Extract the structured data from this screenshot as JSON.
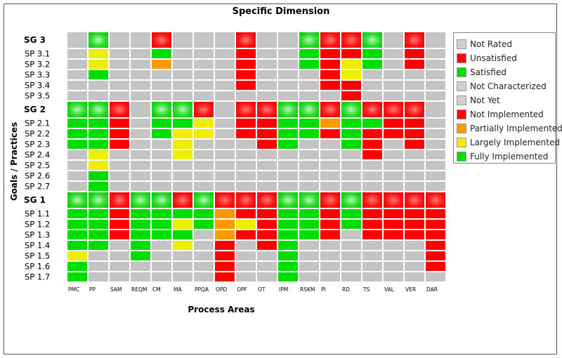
{
  "title": "Specific Dimension",
  "xlabel": "Process Areas",
  "ylabel": "Goals / Practices",
  "legend": [
    {
      "label": "Not Rated",
      "status": "nr"
    },
    {
      "label": "Unsatisfied",
      "status": "u"
    },
    {
      "label": "Satisfied",
      "status": "s"
    },
    {
      "label": "Not Characterized",
      "status": "nc"
    },
    {
      "label": "Not Yet",
      "status": "ny"
    },
    {
      "label": "Not Implemented",
      "status": "ni"
    },
    {
      "label": "Partially Implemented",
      "status": "pi"
    },
    {
      "label": "Largely Implemented",
      "status": "li"
    },
    {
      "label": "Fully Implemented",
      "status": "fi"
    }
  ],
  "colors": {
    "nr": "#d4d0c8",
    "u": "#ff0000",
    "s": "#00dd00",
    "nc": "#d4d0c8",
    "ny": "#d4d0c8",
    "ni": "#ff0000",
    "pi": "#ff9900",
    "li": "#eeee00",
    "fi": "#00dd00",
    "empty": "#c4c4c4",
    "grid": "#ffffff"
  },
  "chart_data": {
    "type": "heatmap",
    "title": "Specific Dimension",
    "xlabel": "Process Areas",
    "ylabel": "Goals / Practices",
    "columns": [
      "PMC",
      "PP",
      "SAM",
      "REQM",
      "CM",
      "MA",
      "PPQA",
      "OPD",
      "OPF",
      "OT",
      "IPM",
      "RSKM",
      "PI",
      "RD",
      "TS",
      "VAL",
      "VER",
      "DAR"
    ],
    "rows": [
      {
        "label": "SG 3",
        "goal": true,
        "cells": [
          "",
          "s",
          "",
          "",
          "u",
          "",
          "",
          "",
          "u",
          "",
          "",
          "s",
          "u",
          "u",
          "s",
          "",
          "u",
          ""
        ]
      },
      {
        "label": "SP 3.1",
        "goal": false,
        "cells": [
          "",
          "li",
          "",
          "",
          "fi",
          "",
          "",
          "",
          "ni",
          "",
          "",
          "fi",
          "ni",
          "ni",
          "fi",
          "",
          "ni",
          ""
        ]
      },
      {
        "label": "SP 3.2",
        "goal": false,
        "cells": [
          "",
          "li",
          "",
          "",
          "pi",
          "",
          "",
          "",
          "ni",
          "",
          "",
          "fi",
          "ni",
          "li",
          "fi",
          "",
          "ni",
          ""
        ]
      },
      {
        "label": "SP 3.3",
        "goal": false,
        "cells": [
          "",
          "fi",
          "",
          "",
          "",
          "",
          "",
          "",
          "ni",
          "",
          "",
          "",
          "ni",
          "li",
          "",
          "",
          "",
          ""
        ]
      },
      {
        "label": "SP 3.4",
        "goal": false,
        "cells": [
          "",
          "",
          "",
          "",
          "",
          "",
          "",
          "",
          "ni",
          "",
          "",
          "",
          "ni",
          "ni",
          "",
          "",
          "",
          ""
        ]
      },
      {
        "label": "SP 3.5",
        "goal": false,
        "cells": [
          "",
          "",
          "",
          "",
          "",
          "",
          "",
          "",
          "",
          "",
          "",
          "",
          "",
          "ni",
          "",
          "",
          "",
          ""
        ]
      },
      {
        "label": "SG 2",
        "goal": true,
        "cells": [
          "s",
          "s",
          "u",
          "",
          "s",
          "s",
          "u",
          "",
          "u",
          "u",
          "s",
          "s",
          "u",
          "s",
          "u",
          "u",
          "u",
          ""
        ]
      },
      {
        "label": "SP 2.1",
        "goal": false,
        "cells": [
          "fi",
          "fi",
          "ni",
          "",
          "fi",
          "fi",
          "li",
          "",
          "ni",
          "ni",
          "fi",
          "fi",
          "pi",
          "fi",
          "fi",
          "ni",
          "ni",
          ""
        ]
      },
      {
        "label": "SP 2.2",
        "goal": false,
        "cells": [
          "fi",
          "fi",
          "ni",
          "",
          "fi",
          "li",
          "li",
          "",
          "ni",
          "ni",
          "fi",
          "fi",
          "ni",
          "fi",
          "ni",
          "ni",
          "ni",
          ""
        ]
      },
      {
        "label": "SP 2.3",
        "goal": false,
        "cells": [
          "fi",
          "fi",
          "ni",
          "",
          "",
          "li",
          "",
          "",
          "",
          "ni",
          "fi",
          "",
          "",
          "fi",
          "ni",
          "",
          "ni",
          ""
        ]
      },
      {
        "label": "SP 2.4",
        "goal": false,
        "cells": [
          "",
          "li",
          "",
          "",
          "",
          "li",
          "",
          "",
          "",
          "",
          "",
          "",
          "",
          "",
          "ni",
          "",
          "",
          ""
        ]
      },
      {
        "label": "SP 2.5",
        "goal": false,
        "cells": [
          "",
          "li",
          "",
          "",
          "",
          "",
          "",
          "",
          "",
          "",
          "",
          "",
          "",
          "",
          "",
          "",
          "",
          ""
        ]
      },
      {
        "label": "SP 2.6",
        "goal": false,
        "cells": [
          "",
          "fi",
          "",
          "",
          "",
          "",
          "",
          "",
          "",
          "",
          "",
          "",
          "",
          "",
          "",
          "",
          "",
          ""
        ]
      },
      {
        "label": "SP 2.7",
        "goal": false,
        "cells": [
          "",
          "fi",
          "",
          "",
          "",
          "",
          "",
          "",
          "",
          "",
          "",
          "",
          "",
          "",
          "",
          "",
          "",
          ""
        ]
      },
      {
        "label": "SG 1",
        "goal": true,
        "cells": [
          "s",
          "s",
          "u",
          "s",
          "s",
          "u",
          "s",
          "u",
          "u",
          "u",
          "s",
          "s",
          "u",
          "s",
          "u",
          "u",
          "u",
          "u"
        ]
      },
      {
        "label": "SP 1.1",
        "goal": false,
        "cells": [
          "fi",
          "fi",
          "ni",
          "fi",
          "fi",
          "fi",
          "fi",
          "pi",
          "ni",
          "ni",
          "fi",
          "fi",
          "ni",
          "fi",
          "ni",
          "ni",
          "ni",
          "ni"
        ]
      },
      {
        "label": "SP 1.2",
        "goal": false,
        "cells": [
          "fi",
          "fi",
          "ni",
          "fi",
          "fi",
          "li",
          "fi",
          "pi",
          "li",
          "ni",
          "fi",
          "fi",
          "ni",
          "fi",
          "ni",
          "ni",
          "ni",
          "ni"
        ]
      },
      {
        "label": "SP 1.3",
        "goal": false,
        "cells": [
          "fi",
          "fi",
          "ni",
          "fi",
          "fi",
          "fi",
          "",
          "pi",
          "ni",
          "ni",
          "fi",
          "fi",
          "ni",
          "",
          "ni",
          "ni",
          "ni",
          "ni"
        ]
      },
      {
        "label": "SP 1.4",
        "goal": false,
        "cells": [
          "fi",
          "fi",
          "",
          "fi",
          "",
          "li",
          "",
          "ni",
          "",
          "ni",
          "fi",
          "",
          "",
          "",
          "",
          "",
          "",
          "ni"
        ]
      },
      {
        "label": "SP 1.5",
        "goal": false,
        "cells": [
          "li",
          "",
          "",
          "fi",
          "",
          "",
          "",
          "ni",
          "",
          "",
          "fi",
          "",
          "",
          "",
          "",
          "",
          "",
          "ni"
        ]
      },
      {
        "label": "SP 1.6",
        "goal": false,
        "cells": [
          "fi",
          "",
          "",
          "",
          "",
          "",
          "",
          "ni",
          "",
          "",
          "fi",
          "",
          "",
          "",
          "",
          "",
          "",
          "ni"
        ]
      },
      {
        "label": "SP 1.7",
        "goal": false,
        "cells": [
          "fi",
          "",
          "",
          "",
          "",
          "",
          "",
          "ni",
          "",
          "",
          "fi",
          "",
          "",
          "",
          "",
          "",
          "",
          ""
        ]
      }
    ]
  }
}
